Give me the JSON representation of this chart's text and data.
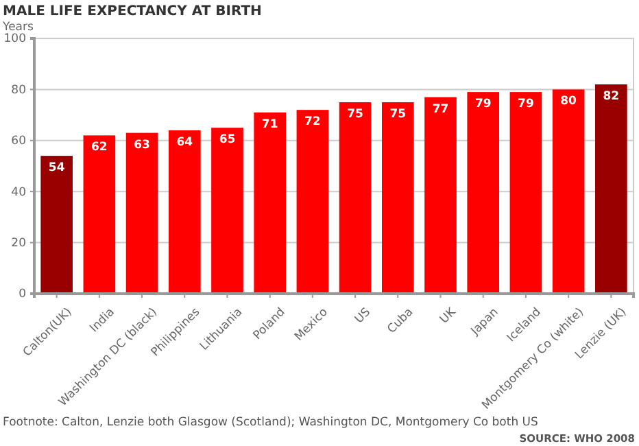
{
  "chart_data": {
    "type": "bar",
    "title": "MALE LIFE EXPECTANCY AT BIRTH",
    "ylabel": "Years",
    "categories": [
      "Calton(UK)",
      "India",
      "Washington DC (black)",
      "Philippines",
      "Lithuania",
      "Poland",
      "Mexico",
      "US",
      "Cuba",
      "UK",
      "Japan",
      "Iceland",
      "Montgomery Co (white)",
      "Lenzie (UK)"
    ],
    "values": [
      54,
      62,
      63,
      64,
      65,
      71,
      72,
      75,
      75,
      77,
      79,
      79,
      80,
      82
    ],
    "colors": [
      "#990000",
      "#ff0000",
      "#ff0000",
      "#ff0000",
      "#ff0000",
      "#ff0000",
      "#ff0000",
      "#ff0000",
      "#ff0000",
      "#ff0000",
      "#ff0000",
      "#ff0000",
      "#ff0000",
      "#990000"
    ],
    "ylim": [
      0,
      100
    ],
    "yticks": [
      0,
      20,
      40,
      60,
      80,
      100
    ],
    "grid": "y",
    "data_labels": true,
    "annotations": [
      "Footnote: Calton, Lenzie both Glasgow (Scotland); Washington DC, Montgomery Co both US",
      "SOURCE: WHO 2008"
    ]
  }
}
